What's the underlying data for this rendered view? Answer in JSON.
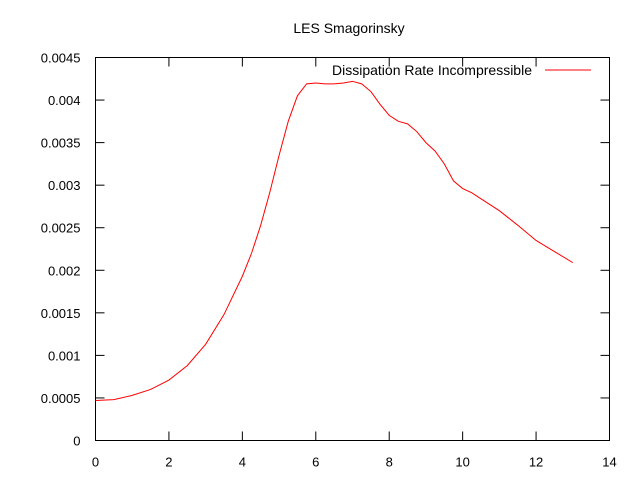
{
  "chart_data": {
    "type": "line",
    "title": "LES Smagorinsky",
    "xlabel": "",
    "ylabel": "",
    "xlim": [
      0,
      14
    ],
    "ylim": [
      0,
      0.0045
    ],
    "x_ticks": [
      "0",
      "2",
      "4",
      "6",
      "8",
      "10",
      "12",
      "14"
    ],
    "y_ticks": [
      "0",
      "0.0005",
      "0.001",
      "0.0015",
      "0.002",
      "0.0025",
      "0.003",
      "0.0035",
      "0.004",
      "0.0045"
    ],
    "grid": false,
    "legend_position": "top-right",
    "series": [
      {
        "name": "Dissipation Rate Incompressible",
        "color": "#ff0000",
        "x": [
          0,
          0.5,
          1,
          1.5,
          2,
          2.5,
          3,
          3.5,
          4,
          4.25,
          4.5,
          4.75,
          5,
          5.25,
          5.5,
          5.75,
          6,
          6.25,
          6.5,
          6.75,
          7,
          7.25,
          7.5,
          7.75,
          8,
          8.25,
          8.5,
          8.75,
          9,
          9.25,
          9.5,
          9.75,
          10,
          10.25,
          10.5,
          11,
          11.5,
          12,
          12.5,
          13
        ],
        "y": [
          0.00047,
          0.00048,
          0.00053,
          0.0006,
          0.00071,
          0.00088,
          0.00113,
          0.00148,
          0.00193,
          0.0022,
          0.00253,
          0.00292,
          0.00335,
          0.00375,
          0.00405,
          0.00419,
          0.0042,
          0.00419,
          0.00419,
          0.0042,
          0.00422,
          0.00419,
          0.0041,
          0.00395,
          0.00382,
          0.00375,
          0.00372,
          0.00363,
          0.0035,
          0.0034,
          0.00325,
          0.00305,
          0.00296,
          0.00291,
          0.00284,
          0.0027,
          0.00253,
          0.00235,
          0.00222,
          0.00209
        ]
      }
    ]
  }
}
